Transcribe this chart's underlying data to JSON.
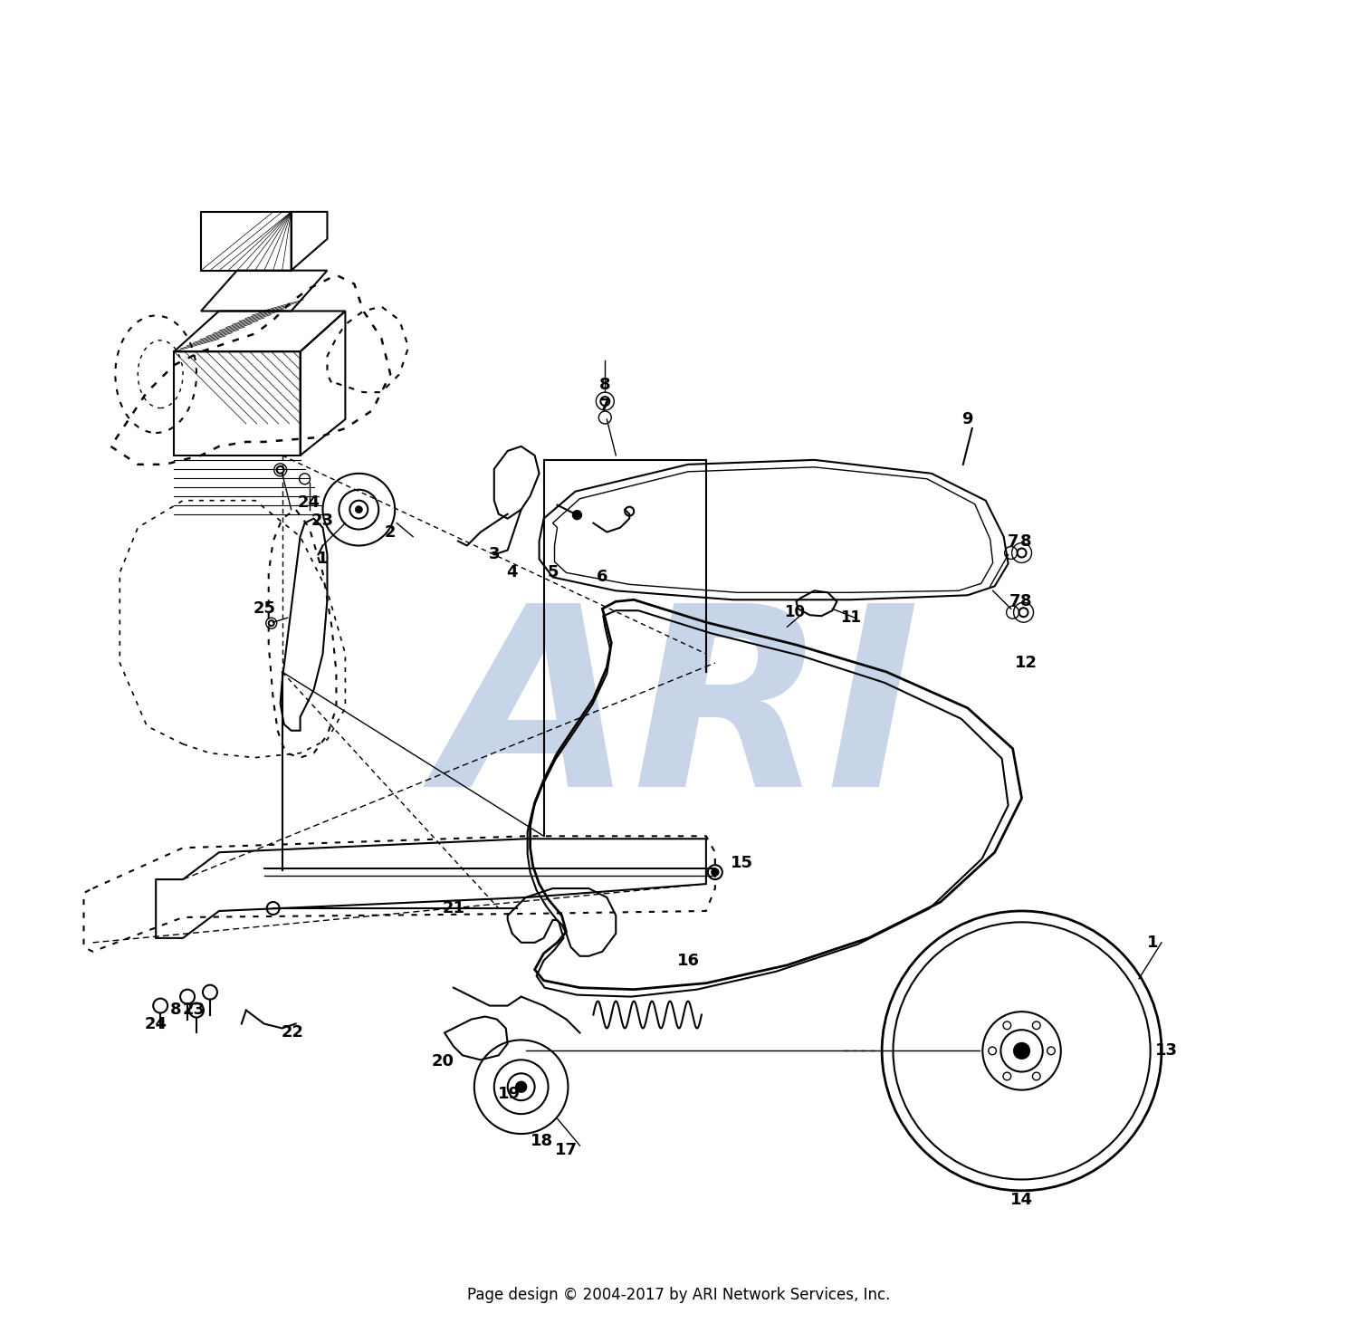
{
  "footer": "Page design © 2004-2017 by ARI Network Services, Inc.",
  "watermark": "ARI",
  "background_color": "#ffffff",
  "line_color": "#000000",
  "watermark_color": "#c8d4e8",
  "footer_fontsize": 12,
  "watermark_fontsize": 200,
  "label_fontsize": 13,
  "fig_width": 15.0,
  "fig_height": 14.72,
  "dpi": 100
}
